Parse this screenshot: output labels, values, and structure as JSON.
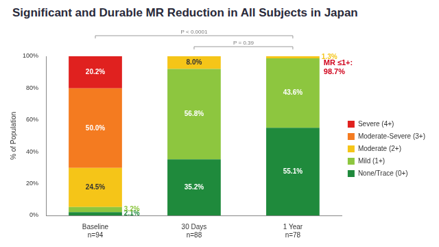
{
  "chart_data": {
    "type": "bar",
    "title": "Significant and Durable MR Reduction in All Subjects in Japan",
    "categories": [
      [
        "Baseline",
        "n=94"
      ],
      [
        "30 Days",
        "n=88"
      ],
      [
        "1 Year",
        "n=78"
      ]
    ],
    "series": [
      {
        "name": "None/Trace (0+)",
        "color": "#1f8a3c",
        "values": [
          2.1,
          35.2,
          55.1
        ],
        "value_labels": [
          "2.1%",
          "35.2%",
          "55.1%"
        ]
      },
      {
        "name": "Mild (1+)",
        "color": "#8dc63f",
        "values": [
          3.2,
          56.8,
          43.6
        ],
        "value_labels": [
          "3.2%",
          "56.8%",
          "43.6%"
        ]
      },
      {
        "name": "Moderate (2+)",
        "color": "#f5c518",
        "values": [
          24.5,
          8.0,
          1.3
        ],
        "value_labels": [
          "24.5%",
          "8.0%",
          "1.3%"
        ]
      },
      {
        "name": "Moderate-Severe (3+)",
        "color": "#f47b20",
        "values": [
          50.0,
          null,
          null
        ],
        "value_labels": [
          "50.0%",
          null,
          null
        ]
      },
      {
        "name": "Severe (4+)",
        "color": "#e0211f",
        "values": [
          20.2,
          null,
          null
        ],
        "value_labels": [
          "20.2%",
          null,
          null
        ]
      }
    ],
    "y_label": "% of Population",
    "ylim": [
      0,
      100
    ],
    "yticks": [
      {
        "value": 0,
        "label": "0%"
      },
      {
        "value": 20,
        "label": "20%"
      },
      {
        "value": 40,
        "label": "40%"
      },
      {
        "value": 60,
        "label": "60%"
      },
      {
        "value": 80,
        "label": "80%"
      },
      {
        "value": 100,
        "label": "100%"
      }
    ],
    "stacked": true,
    "data_labels": true,
    "grid": false,
    "legend": "right",
    "annotations": [
      {
        "text": [
          "P < 0.0001"
        ],
        "between": [
          0,
          2
        ]
      },
      {
        "text": [
          "P = 0.39"
        ],
        "between": [
          1,
          2
        ]
      },
      {
        "text": [
          "MR ≤1+:",
          "98.7%"
        ],
        "at": 2,
        "color": "#d0021b"
      }
    ]
  }
}
